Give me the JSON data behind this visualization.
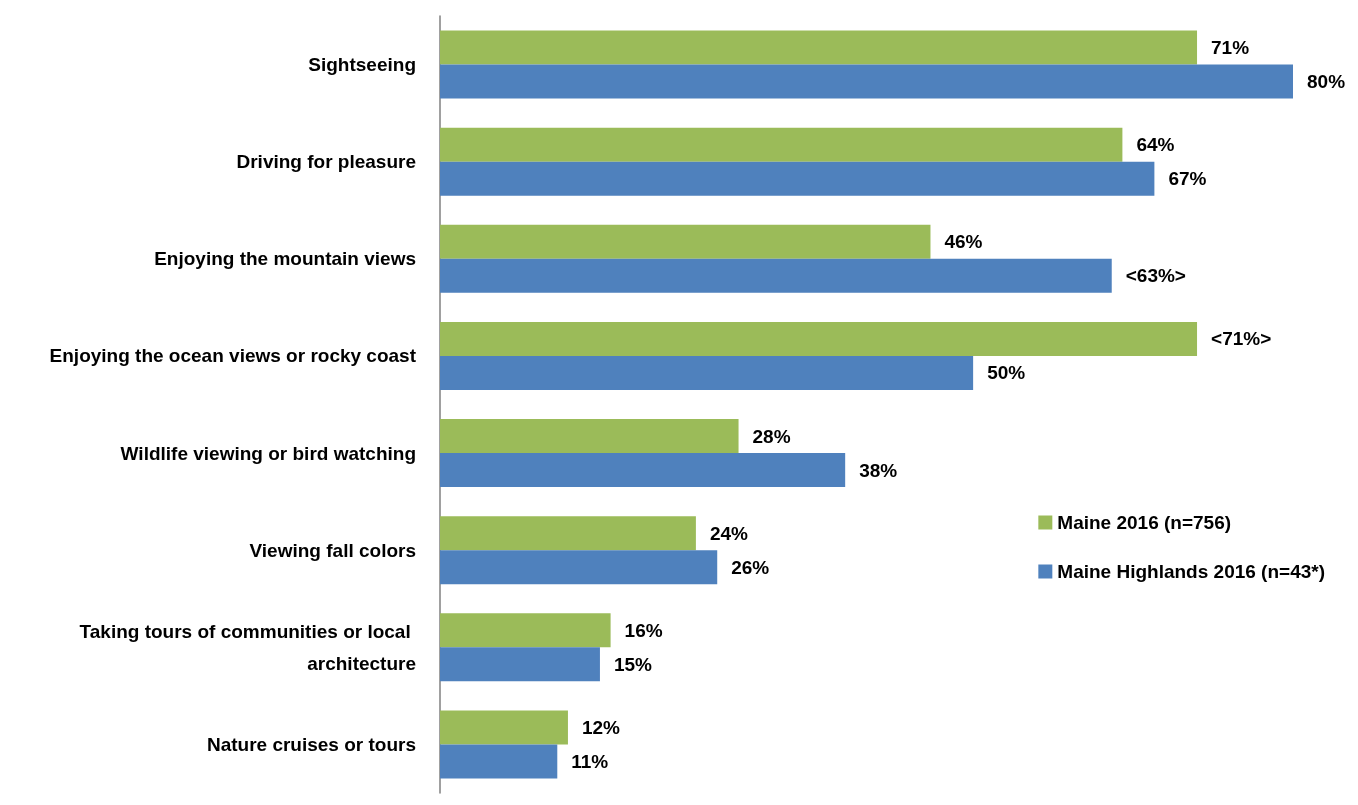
{
  "chart_data": {
    "type": "bar",
    "orientation": "horizontal",
    "categories": [
      "Sightseeing",
      "Driving for pleasure",
      "Enjoying the mountain views",
      "Enjoying the ocean views or rocky coast",
      "Wildlife viewing or bird watching",
      "Viewing fall colors",
      "Taking tours of communities or local architecture",
      "Nature cruises or tours"
    ],
    "series": [
      {
        "name": "Maine 2016 (n=756)",
        "color": "#9bbb59",
        "values": [
          71,
          64,
          46,
          71,
          28,
          24,
          16,
          12
        ],
        "value_labels": [
          "71%",
          "64%",
          "46%",
          "<71%>",
          "28%",
          "24%",
          "16%",
          "12%"
        ]
      },
      {
        "name": "Maine Highlands 2016 (n=43*)",
        "color": "#4f81bd",
        "values": [
          80,
          67,
          63,
          50,
          38,
          26,
          15,
          11
        ],
        "value_labels": [
          "80%",
          "67%",
          "<63%>",
          "50%",
          "38%",
          "26%",
          "15%",
          "11%"
        ]
      }
    ],
    "legend": "right",
    "tick_labels": "y"
  }
}
